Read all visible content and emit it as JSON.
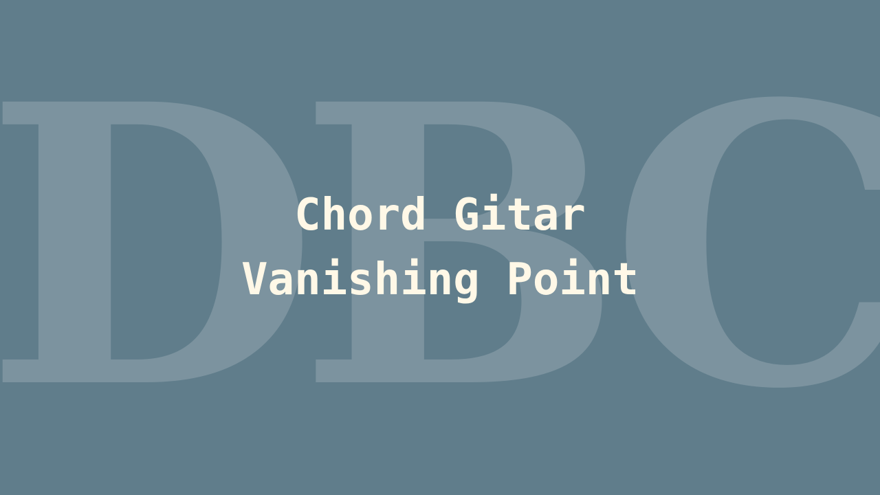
{
  "watermark": {
    "text": "DBC"
  },
  "title": {
    "line1": "Chord Gitar",
    "line2": "Vanishing Point"
  },
  "colors": {
    "background": "#607d8b",
    "title_text": "#fff8e7",
    "watermark": "#b0bec5"
  }
}
